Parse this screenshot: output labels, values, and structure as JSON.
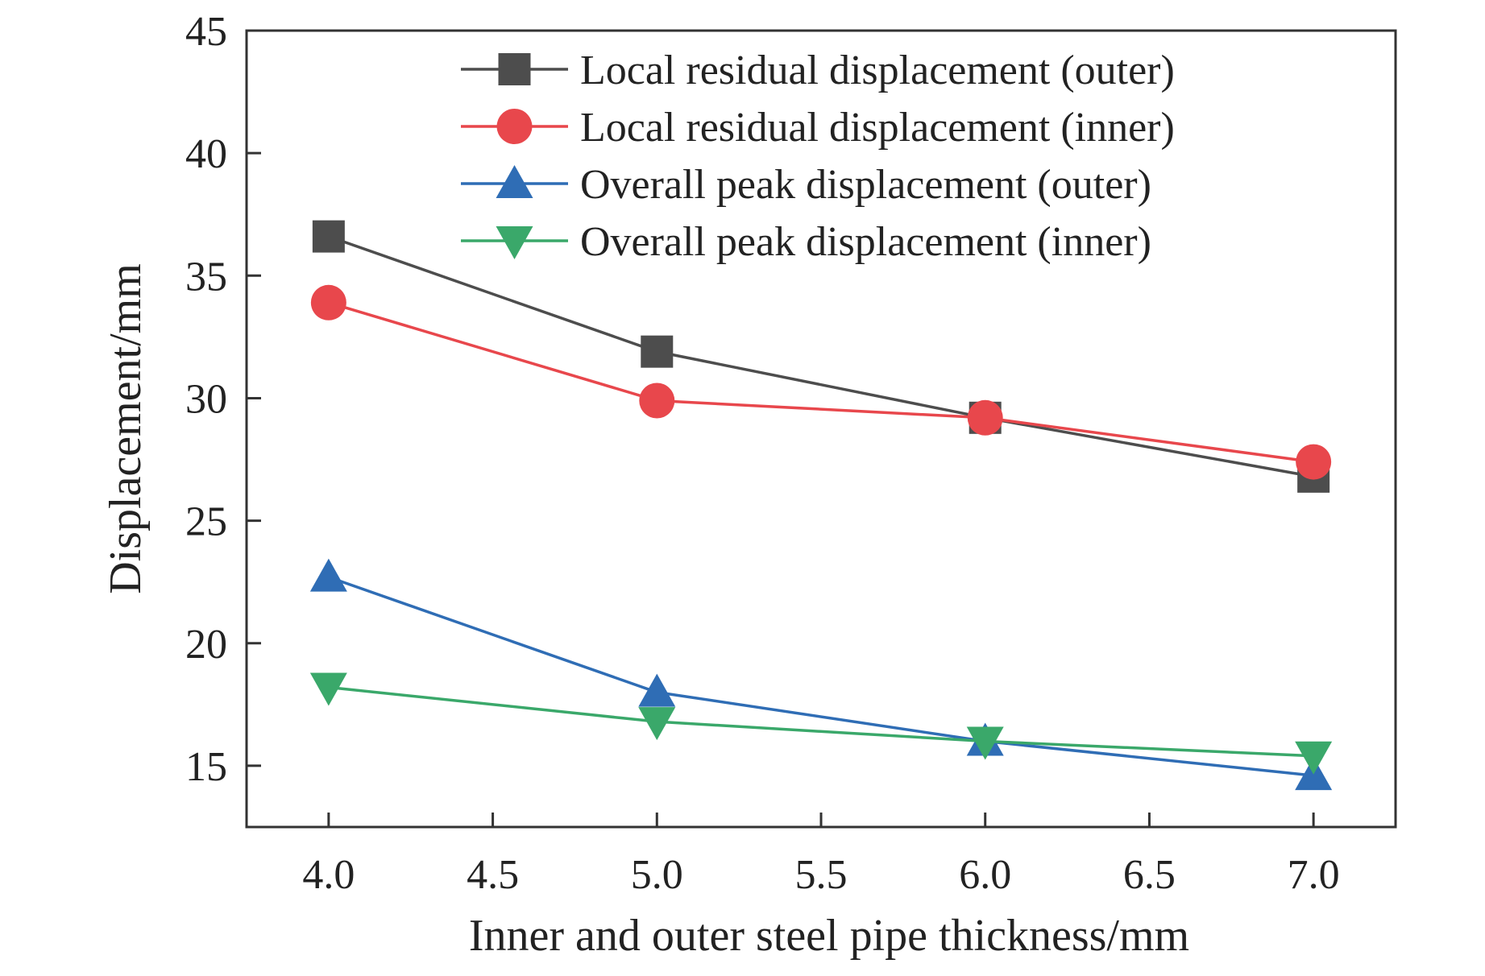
{
  "chart_data": {
    "type": "line",
    "title": "",
    "xlabel": "Inner and outer steel pipe thickness/mm",
    "ylabel": "Displacement/mm",
    "xlim": [
      3.75,
      7.25
    ],
    "ylim": [
      12.5,
      45
    ],
    "x": [
      4.0,
      5.0,
      6.0,
      7.0
    ],
    "x_ticks": [
      4.0,
      4.5,
      5.0,
      5.5,
      6.0,
      6.5,
      7.0
    ],
    "x_tick_labels": [
      "4.0",
      "4.5",
      "5.0",
      "5.5",
      "6.0",
      "6.5",
      "7.0"
    ],
    "y_ticks": [
      15,
      20,
      25,
      30,
      35,
      40,
      45
    ],
    "y_tick_labels": [
      "15",
      "20",
      "25",
      "30",
      "35",
      "40",
      "45"
    ],
    "grid": false,
    "legend_position": "top-right",
    "series": [
      {
        "name": "Local residual displacement (outer)",
        "marker": "square",
        "color": "#4d4d4d",
        "values": [
          36.6,
          31.9,
          29.2,
          26.8
        ]
      },
      {
        "name": "Local residual displacement (inner)",
        "marker": "circle",
        "color": "#e8474c",
        "values": [
          33.9,
          29.9,
          29.2,
          27.4
        ]
      },
      {
        "name": "Overall peak displacement (outer)",
        "marker": "triangle-up",
        "color": "#2f6db5",
        "values": [
          22.7,
          18.0,
          16.0,
          14.6
        ]
      },
      {
        "name": "Overall peak displacement (inner)",
        "marker": "triangle-down",
        "color": "#3aa86a",
        "values": [
          18.2,
          16.8,
          16.0,
          15.4
        ]
      }
    ]
  }
}
